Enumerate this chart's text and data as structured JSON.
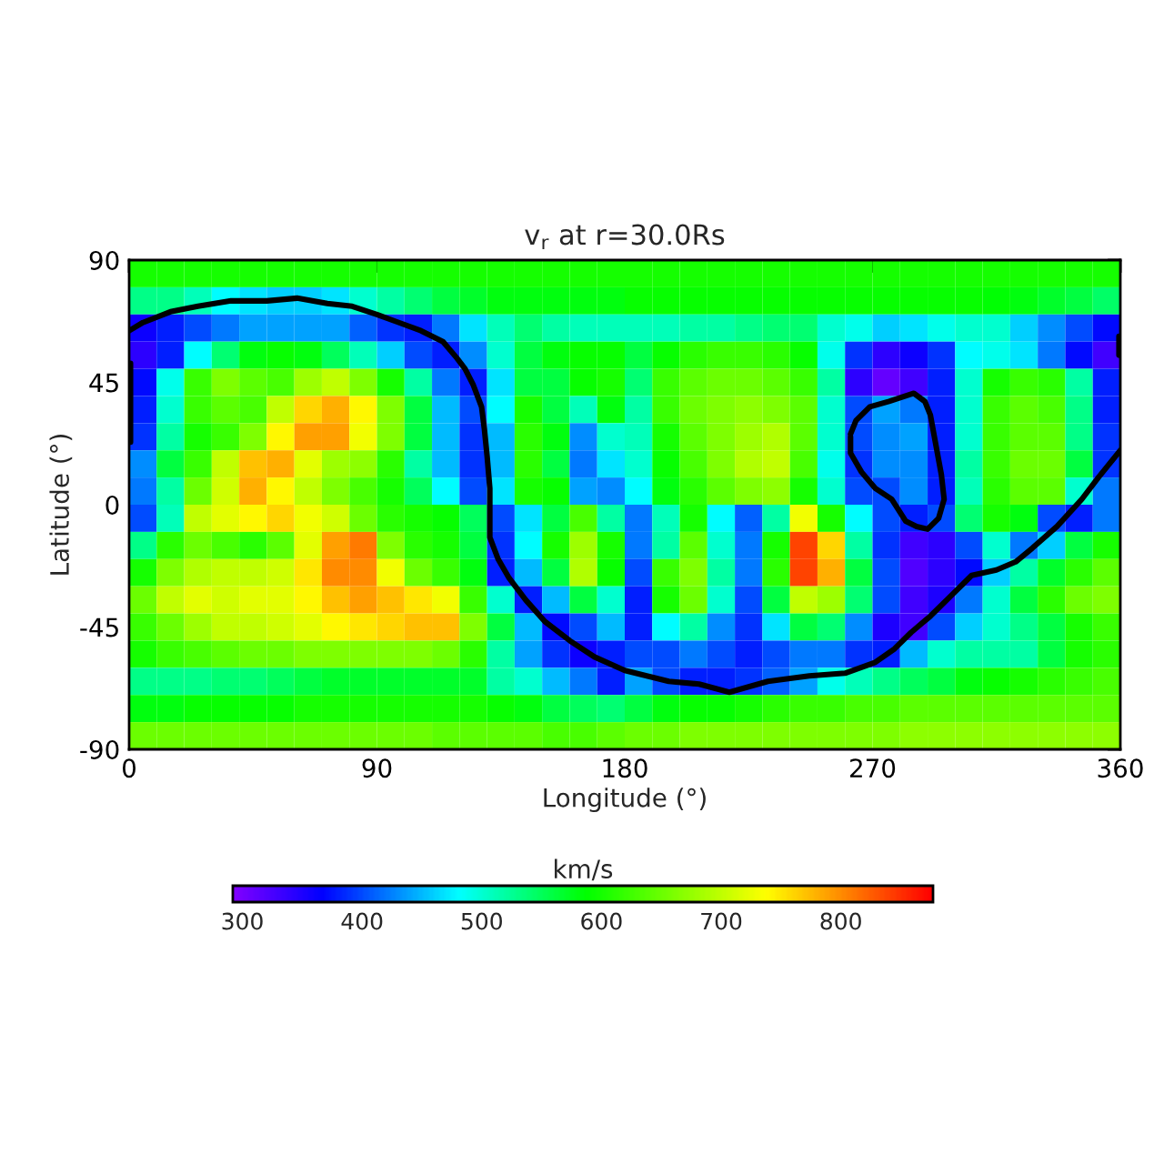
{
  "chart_data": {
    "type": "heatmap",
    "title": "v$_{r}$ at r=30.0Rs",
    "xlabel": "Longitude (°)",
    "ylabel": "Latitude (°)",
    "clabel": "km/s",
    "x": [
      5,
      15,
      25,
      35,
      45,
      55,
      65,
      75,
      85,
      95,
      105,
      115,
      125,
      135,
      145,
      155,
      165,
      175,
      185,
      195,
      205,
      215,
      225,
      235,
      245,
      255,
      265,
      275,
      285,
      295,
      305,
      315,
      325,
      335,
      345,
      355
    ],
    "xlim": [
      0,
      360
    ],
    "xticks": [
      0,
      90,
      180,
      270,
      360
    ],
    "ylim": [
      -90,
      90
    ],
    "yticks": [
      -90,
      -45,
      0,
      45,
      90
    ],
    "clim": [
      292,
      877
    ],
    "cticks": [
      300,
      400,
      500,
      600,
      700,
      800
    ],
    "cells": [
      [
        600,
        600,
        600,
        600,
        600,
        600,
        600,
        600,
        600,
        600,
        600,
        600,
        600,
        600,
        600,
        600,
        600,
        600,
        600,
        600,
        600,
        600,
        600,
        600,
        600,
        600,
        600,
        600,
        600,
        600,
        600,
        600,
        600,
        600,
        600,
        600
      ],
      [
        530,
        530,
        510,
        480,
        470,
        460,
        460,
        470,
        500,
        520,
        540,
        560,
        570,
        580,
        580,
        580,
        580,
        580,
        590,
        590,
        590,
        590,
        590,
        590,
        590,
        590,
        590,
        590,
        590,
        590,
        590,
        585,
        580,
        570,
        560,
        545
      ],
      [
        360,
        380,
        400,
        420,
        440,
        440,
        440,
        440,
        410,
        390,
        380,
        420,
        470,
        510,
        540,
        520,
        510,
        510,
        510,
        510,
        520,
        520,
        530,
        540,
        540,
        500,
        490,
        460,
        470,
        490,
        500,
        500,
        460,
        430,
        400,
        370
      ],
      [
        340,
        380,
        480,
        540,
        580,
        590,
        580,
        550,
        510,
        460,
        400,
        380,
        430,
        500,
        560,
        580,
        590,
        590,
        560,
        590,
        610,
        620,
        620,
        610,
        590,
        490,
        390,
        340,
        360,
        390,
        480,
        490,
        470,
        420,
        370,
        330
      ],
      [
        370,
        490,
        620,
        660,
        640,
        630,
        680,
        700,
        660,
        600,
        520,
        420,
        380,
        470,
        560,
        560,
        590,
        600,
        540,
        620,
        640,
        650,
        650,
        640,
        620,
        520,
        340,
        310,
        330,
        380,
        500,
        600,
        620,
        610,
        520,
        380
      ],
      [
        380,
        500,
        620,
        640,
        630,
        700,
        760,
        780,
        740,
        660,
        560,
        450,
        400,
        480,
        600,
        560,
        510,
        580,
        520,
        620,
        650,
        660,
        670,
        660,
        640,
        500,
        400,
        440,
        420,
        380,
        500,
        620,
        640,
        630,
        530,
        380
      ],
      [
        390,
        520,
        600,
        620,
        660,
        740,
        790,
        790,
        730,
        660,
        560,
        450,
        390,
        450,
        610,
        580,
        430,
        500,
        510,
        600,
        640,
        660,
        680,
        690,
        640,
        500,
        400,
        430,
        440,
        380,
        500,
        620,
        640,
        640,
        530,
        390
      ],
      [
        430,
        560,
        620,
        700,
        770,
        780,
        720,
        680,
        670,
        610,
        520,
        450,
        390,
        450,
        610,
        560,
        420,
        470,
        500,
        590,
        630,
        660,
        690,
        700,
        630,
        490,
        390,
        430,
        430,
        380,
        520,
        620,
        650,
        650,
        560,
        390
      ],
      [
        420,
        520,
        650,
        710,
        780,
        740,
        700,
        660,
        630,
        600,
        550,
        480,
        400,
        470,
        600,
        590,
        440,
        430,
        480,
        580,
        610,
        640,
        660,
        670,
        600,
        500,
        400,
        400,
        430,
        380,
        510,
        610,
        640,
        640,
        500,
        420
      ],
      [
        400,
        510,
        700,
        720,
        740,
        760,
        730,
        710,
        650,
        610,
        600,
        590,
        550,
        400,
        470,
        560,
        630,
        520,
        420,
        510,
        600,
        480,
        410,
        520,
        730,
        600,
        480,
        400,
        380,
        400,
        540,
        600,
        580,
        400,
        380,
        420
      ],
      [
        530,
        610,
        650,
        630,
        610,
        640,
        720,
        790,
        810,
        660,
        610,
        600,
        560,
        390,
        480,
        600,
        680,
        600,
        420,
        520,
        640,
        500,
        420,
        600,
        840,
        760,
        520,
        390,
        330,
        340,
        400,
        500,
        420,
        460,
        560,
        600
      ],
      [
        600,
        660,
        690,
        700,
        700,
        710,
        750,
        800,
        800,
        730,
        650,
        620,
        580,
        380,
        450,
        560,
        690,
        590,
        400,
        620,
        660,
        520,
        420,
        610,
        840,
        780,
        560,
        400,
        320,
        340,
        370,
        460,
        520,
        570,
        610,
        640
      ],
      [
        650,
        700,
        720,
        710,
        720,
        720,
        740,
        770,
        790,
        770,
        750,
        730,
        620,
        500,
        380,
        450,
        560,
        500,
        380,
        600,
        650,
        500,
        400,
        560,
        700,
        680,
        540,
        400,
        330,
        350,
        420,
        500,
        560,
        610,
        650,
        660
      ],
      [
        620,
        650,
        680,
        700,
        700,
        710,
        720,
        740,
        750,
        760,
        770,
        770,
        660,
        560,
        450,
        370,
        400,
        450,
        380,
        480,
        520,
        430,
        390,
        470,
        560,
        540,
        430,
        350,
        330,
        400,
        460,
        500,
        530,
        560,
        600,
        620
      ],
      [
        600,
        620,
        630,
        640,
        650,
        650,
        660,
        660,
        660,
        660,
        660,
        650,
        610,
        520,
        440,
        390,
        360,
        380,
        400,
        400,
        420,
        400,
        380,
        400,
        420,
        420,
        390,
        380,
        450,
        500,
        520,
        520,
        520,
        560,
        600,
        610
      ],
      [
        530,
        530,
        530,
        540,
        540,
        550,
        560,
        570,
        570,
        570,
        570,
        570,
        570,
        520,
        500,
        450,
        420,
        380,
        440,
        400,
        380,
        380,
        390,
        410,
        440,
        490,
        510,
        530,
        550,
        560,
        580,
        590,
        600,
        610,
        620,
        630
      ],
      [
        580,
        580,
        590,
        590,
        590,
        590,
        600,
        600,
        600,
        600,
        600,
        600,
        600,
        590,
        580,
        560,
        550,
        540,
        560,
        580,
        590,
        590,
        600,
        610,
        620,
        620,
        630,
        630,
        640,
        640,
        640,
        640,
        640,
        640,
        640,
        640
      ],
      [
        650,
        650,
        650,
        650,
        650,
        650,
        650,
        650,
        650,
        650,
        650,
        640,
        640,
        640,
        640,
        630,
        630,
        640,
        650,
        650,
        660,
        660,
        660,
        660,
        660,
        660,
        660,
        660,
        670,
        670,
        670,
        670,
        670,
        670,
        670,
        670
      ]
    ],
    "series": [
      {
        "type": "line",
        "color": "#000000",
        "x": [
          359.5,
          359.5,
          null,
          0,
          5,
          15,
          25,
          37,
          50,
          61,
          72,
          81,
          90,
          98,
          106,
          114,
          119,
          122,
          125,
          128,
          129,
          130,
          131,
          131,
          134,
          138,
          144,
          151,
          160,
          169,
          180,
          188,
          196,
          207,
          218,
          232,
          247,
          260,
          271,
          278,
          284,
          291,
          298,
          306,
          315,
          322,
          328,
          337,
          346,
          352,
          356,
          360,
          null,
          0.5,
          0.5
        ],
        "values": [
          55,
          62,
          null,
          64,
          67,
          71,
          73,
          75,
          75,
          76,
          74,
          73,
          70,
          67,
          64,
          60,
          54,
          50,
          44,
          36,
          28,
          18,
          6,
          -12,
          -20,
          -27,
          -35,
          -43,
          -50,
          -56,
          -61,
          -63,
          -65,
          -66,
          -69,
          -65,
          -63,
          -62,
          -58,
          -53,
          -47,
          -41,
          -34,
          -26,
          -24,
          -21,
          -16,
          -8,
          2,
          10,
          15,
          20,
          null,
          23,
          52
        ]
      },
      {
        "type": "line",
        "color": "#000000",
        "x": [
          262,
          264,
          269,
          276,
          285,
          289,
          291,
          293,
          295,
          296,
          294,
          290,
          286,
          282,
          277,
          271,
          266,
          262,
          262
        ],
        "values": [
          26,
          31,
          36,
          38,
          41,
          38,
          33,
          22,
          11,
          2,
          -5,
          -9,
          -8,
          -6,
          2,
          6,
          12,
          19,
          25
        ]
      }
    ]
  }
}
